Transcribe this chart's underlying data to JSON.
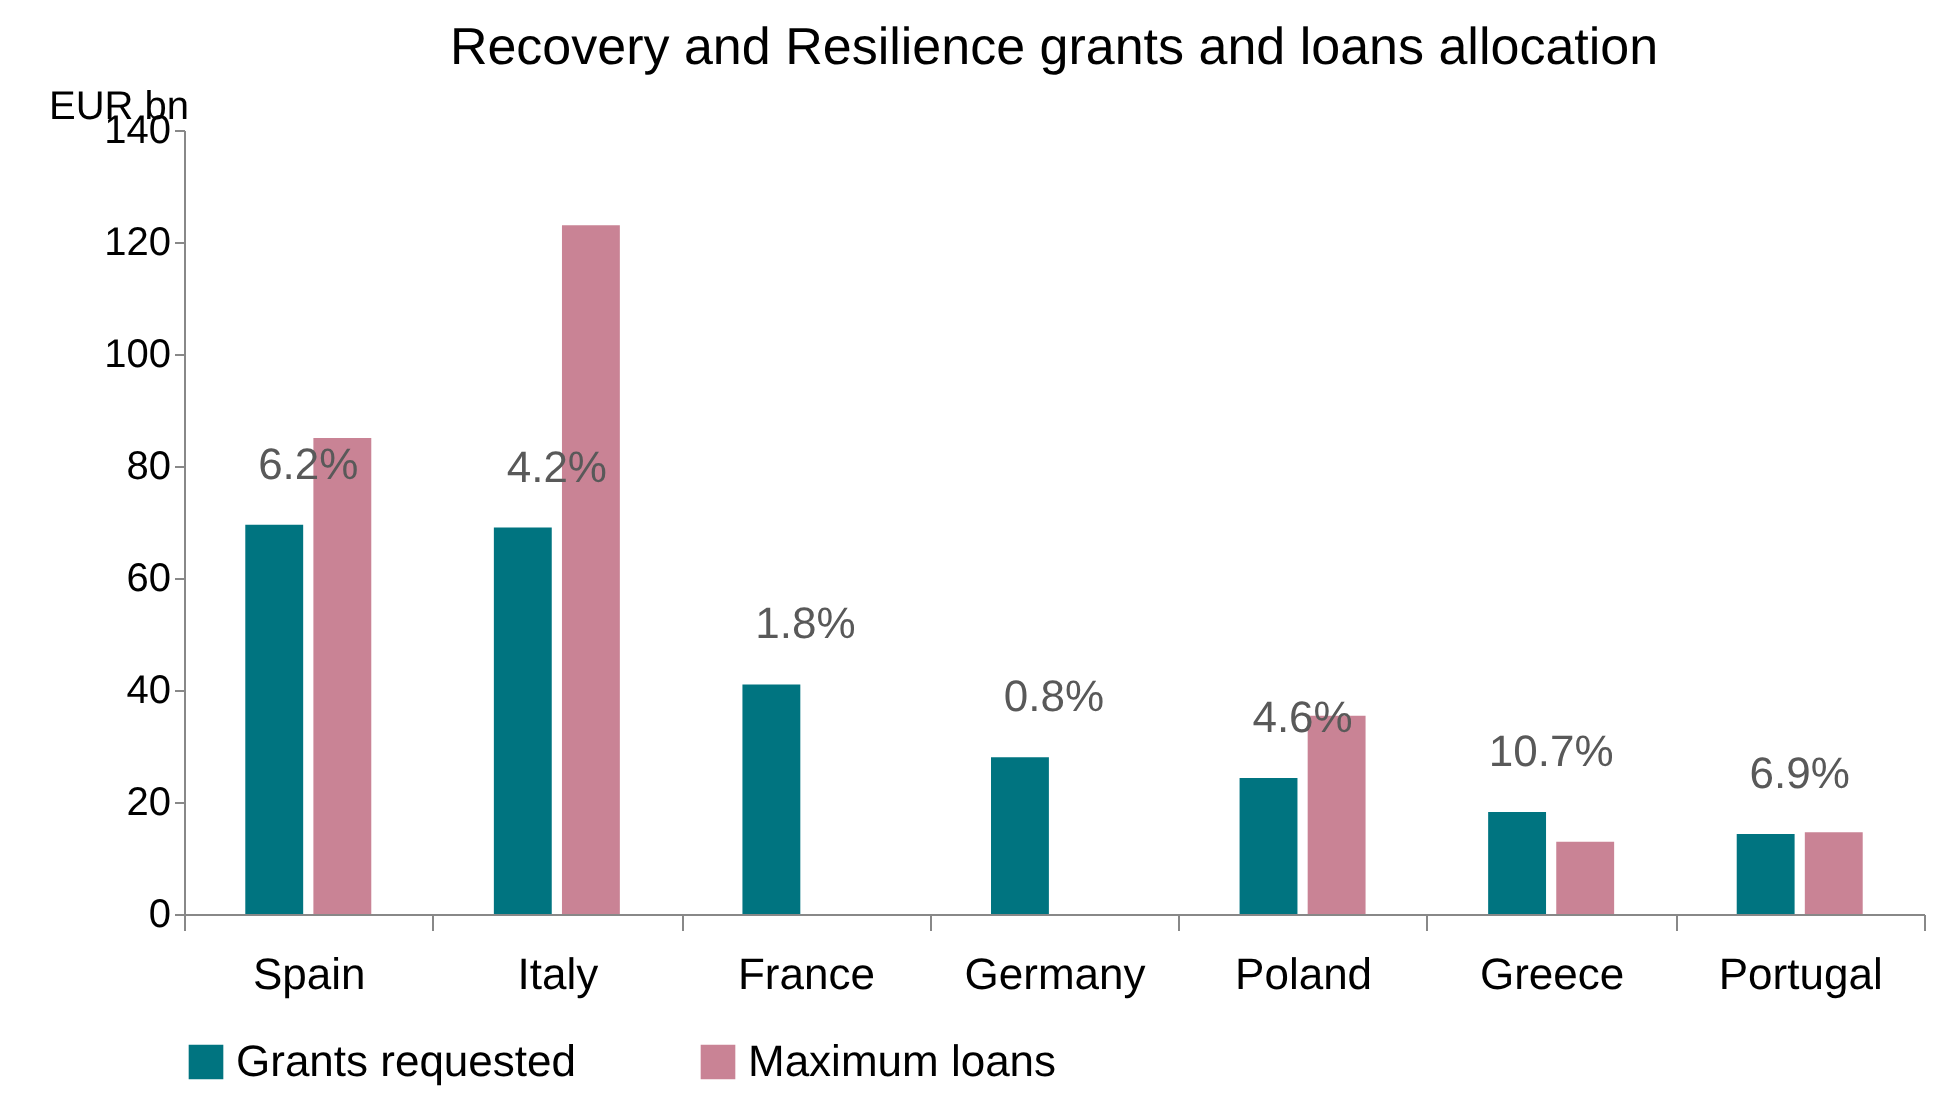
{
  "chart_data": {
    "type": "bar",
    "title": "Recovery and Resilience grants and loans allocation",
    "ylabel": "EUR bn",
    "categories": [
      "Spain",
      "Italy",
      "France",
      "Germany",
      "Poland",
      "Greece",
      "Portugal"
    ],
    "series": [
      {
        "name": "Grants requested",
        "color": "#007480",
        "values": [
          69.5,
          69,
          41,
          28,
          24.3,
          18.2,
          14.3
        ]
      },
      {
        "name": "Maximum loans",
        "color": "#c98395",
        "values": [
          85,
          123,
          null,
          null,
          35.4,
          12.9,
          14.6
        ]
      }
    ],
    "ylim": [
      0,
      140
    ],
    "yticks": [
      0,
      20,
      40,
      60,
      80,
      100,
      120,
      140
    ],
    "grid": false,
    "legend": "bottom",
    "annotations": [
      {
        "text": "6.2%",
        "x": "Spain",
        "y": 69.5
      },
      {
        "text": "4.2%",
        "x": "Italy",
        "y": 69
      },
      {
        "text": "1.8%",
        "x": "France",
        "y": 41
      },
      {
        "text": "0.8%",
        "x": "Germany",
        "y": 28
      },
      {
        "text": "4.6%",
        "x": "Poland",
        "y": 24.3
      },
      {
        "text": "10.7%",
        "x": "Greece",
        "y": 18.2
      },
      {
        "text": "6.9%",
        "x": "Portugal",
        "y": 14.3
      }
    ]
  }
}
